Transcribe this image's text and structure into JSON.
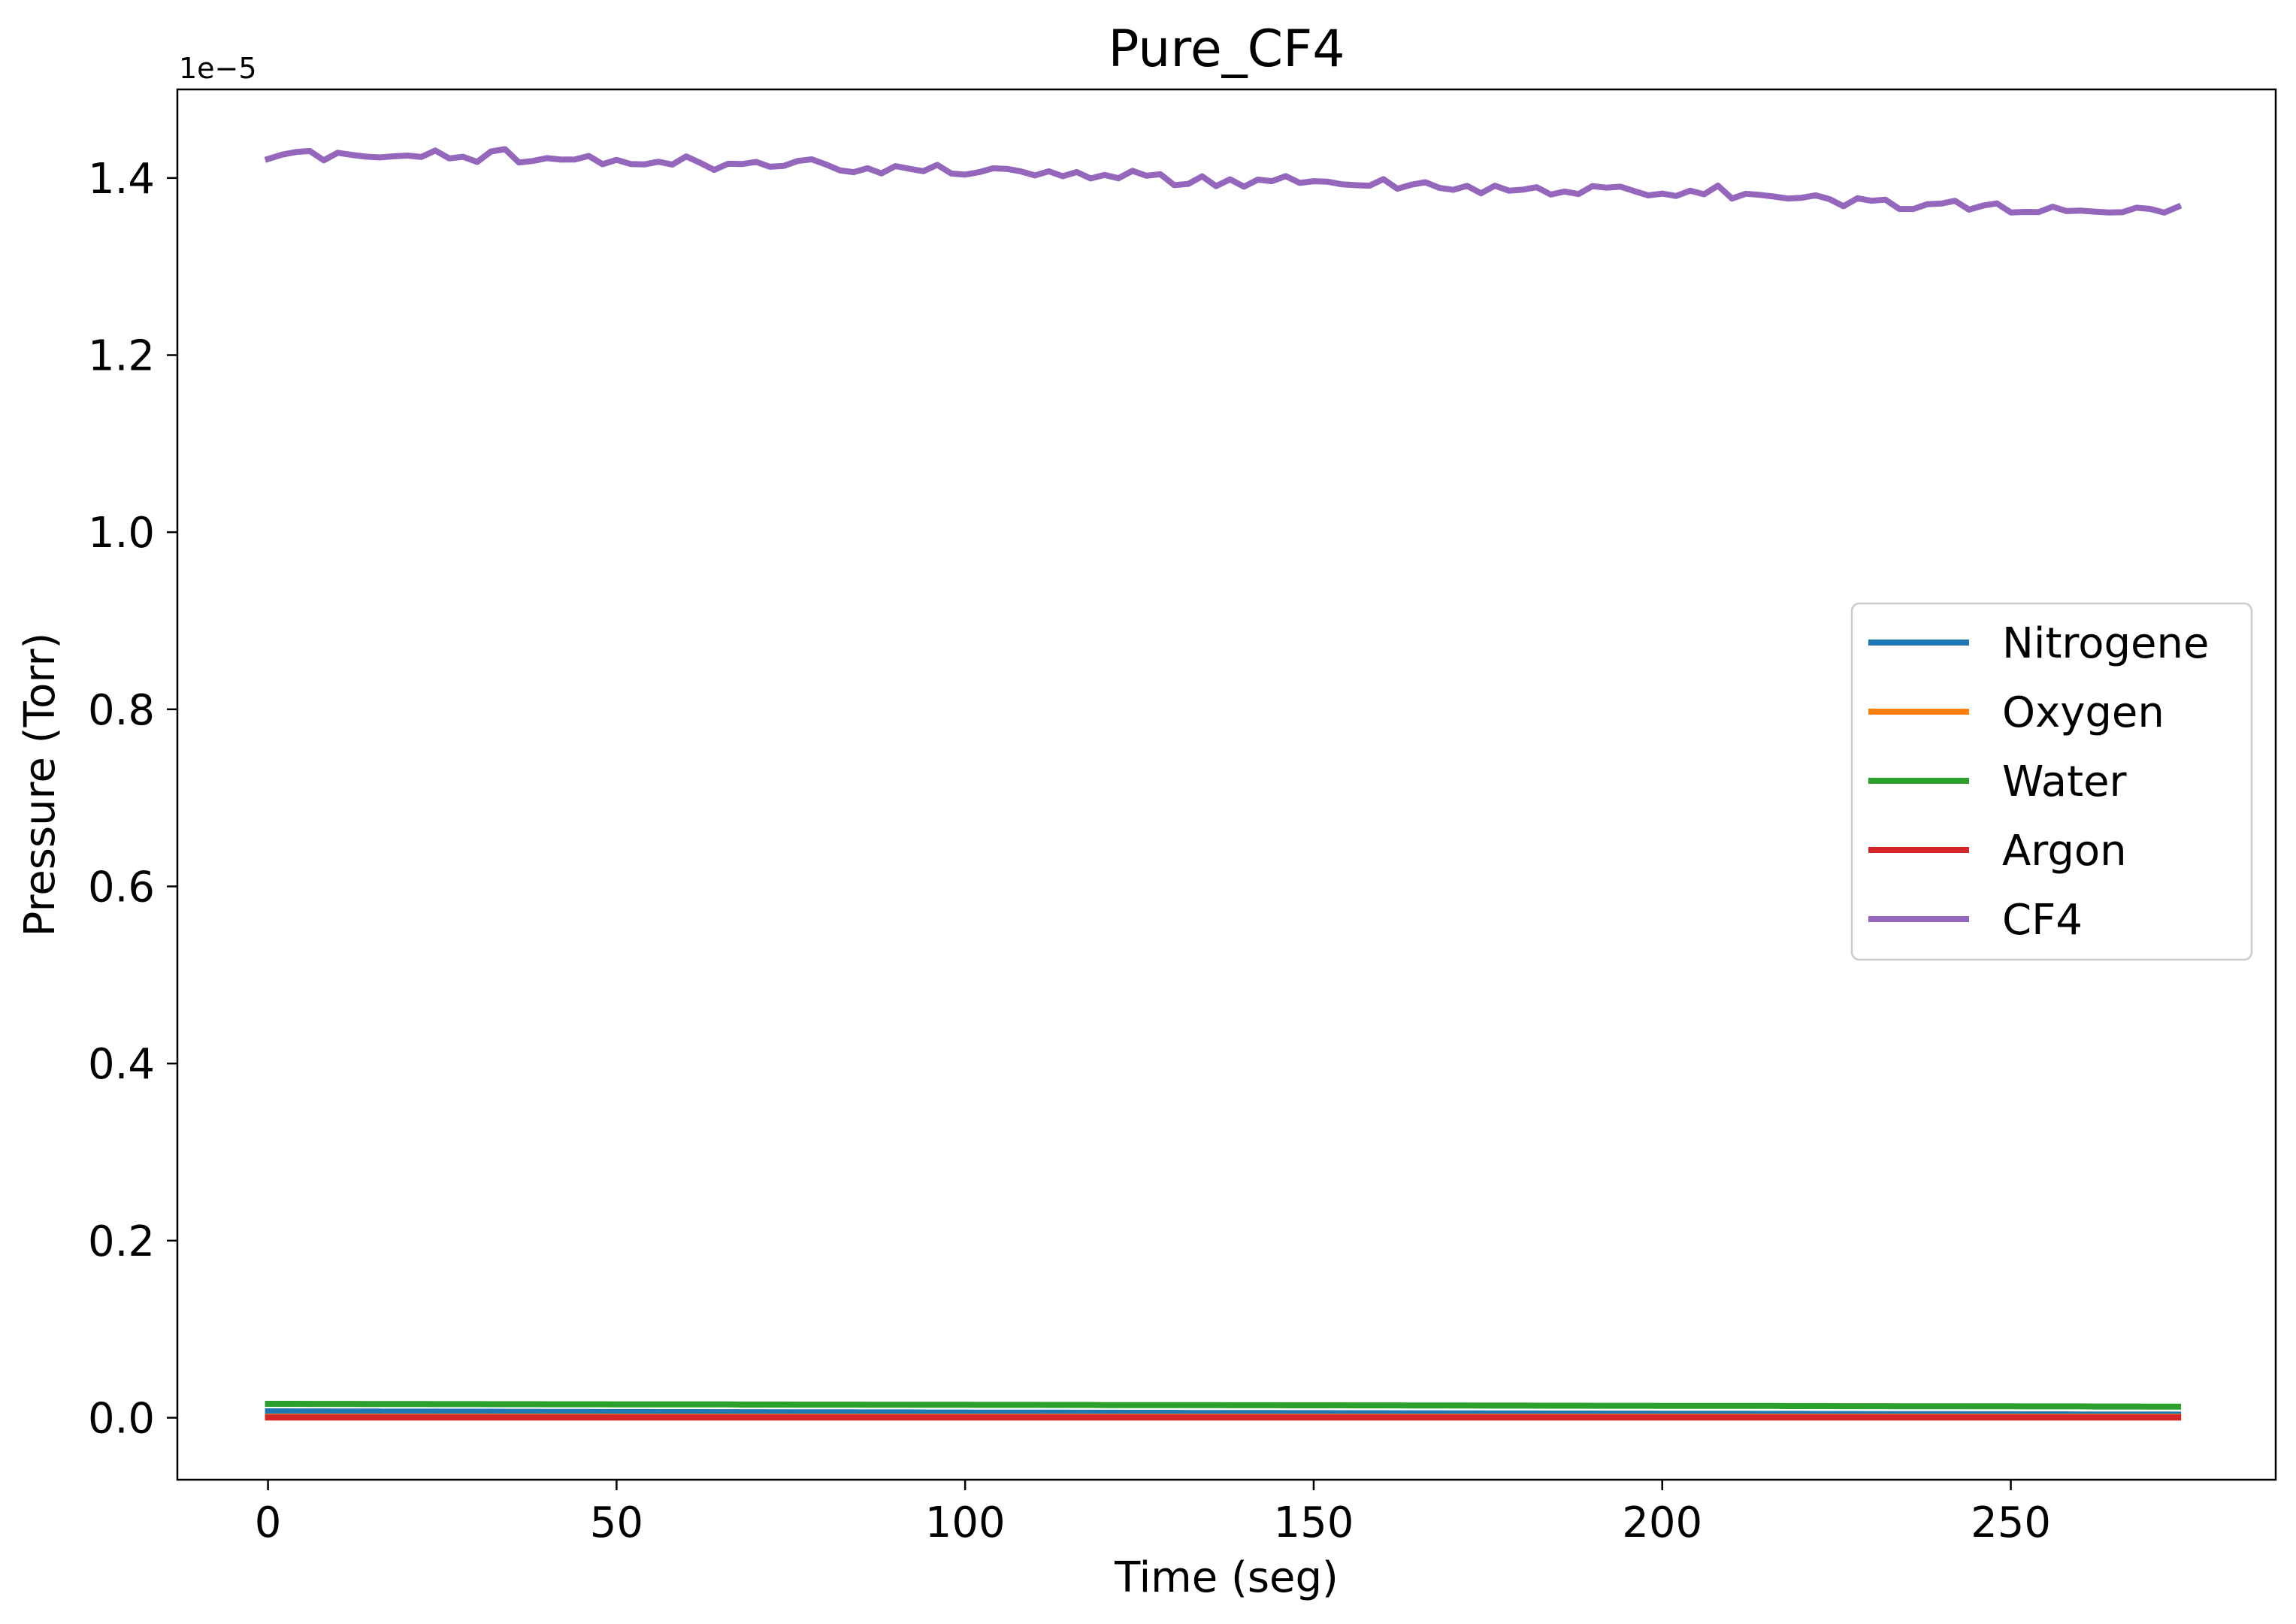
{
  "chart_data": {
    "type": "line",
    "title": "Pure_CF4",
    "xlabel": "Time (seg)",
    "ylabel": "Pressure (Torr)",
    "y_offset_label": "1e−5",
    "y_scale_factor": 1e-05,
    "xlim": [
      -13,
      288
    ],
    "ylim": [
      -0.07,
      1.5
    ],
    "x_ticks": [
      0,
      50,
      100,
      150,
      200,
      250
    ],
    "y_ticks": [
      0.0,
      0.2,
      0.4,
      0.6,
      0.8,
      1.0,
      1.2,
      1.4
    ],
    "x_tick_labels": [
      "0",
      "50",
      "100",
      "150",
      "200",
      "250"
    ],
    "y_tick_labels": [
      "0.0",
      "0.2",
      "0.4",
      "0.6",
      "0.8",
      "1.0",
      "1.2",
      "1.4"
    ],
    "grid": false,
    "legend_position": "center-right",
    "x": [
      0,
      2,
      4,
      6,
      8,
      10,
      12,
      14,
      16,
      18,
      20,
      22,
      24,
      26,
      28,
      30,
      32,
      34,
      36,
      38,
      40,
      42,
      44,
      46,
      48,
      50,
      52,
      54,
      56,
      58,
      60,
      62,
      64,
      66,
      68,
      70,
      72,
      74,
      76,
      78,
      80,
      82,
      84,
      86,
      88,
      90,
      92,
      94,
      96,
      98,
      100,
      102,
      104,
      106,
      108,
      110,
      112,
      114,
      116,
      118,
      120,
      122,
      124,
      126,
      128,
      130,
      132,
      134,
      136,
      138,
      140,
      142,
      144,
      146,
      148,
      150,
      152,
      154,
      156,
      158,
      160,
      162,
      164,
      166,
      168,
      170,
      172,
      174,
      176,
      178,
      180,
      182,
      184,
      186,
      188,
      190,
      192,
      194,
      196,
      198,
      200,
      202,
      204,
      206,
      208,
      210,
      212,
      214,
      216,
      218,
      220,
      222,
      224,
      226,
      228,
      230,
      232,
      234,
      236,
      238,
      240,
      242,
      244,
      246,
      248,
      250,
      252,
      254,
      256,
      258,
      260,
      262,
      264,
      266,
      268,
      270,
      272,
      274
    ],
    "series": [
      {
        "name": "Nitrogene",
        "color": "#1f77b4",
        "values": [
          0.0072,
          0.0072,
          0.0071,
          0.0071,
          0.0071,
          0.007,
          0.007,
          0.007,
          0.007,
          0.0069,
          0.0069,
          0.0069,
          0.0069,
          0.0068,
          0.0068,
          0.0068,
          0.0068,
          0.0067,
          0.0067,
          0.0067,
          0.0066,
          0.0066,
          0.0066,
          0.0066,
          0.0065,
          0.0065,
          0.0065,
          0.0065,
          0.0064,
          0.0064,
          0.0064,
          0.0064,
          0.0063,
          0.0063,
          0.0063,
          0.0063,
          0.0062,
          0.0062,
          0.0062,
          0.0061,
          0.0061,
          0.0061,
          0.0061,
          0.006,
          0.006,
          0.006,
          0.006,
          0.0059,
          0.0059,
          0.0059,
          0.0059,
          0.0058,
          0.0058,
          0.0058,
          0.0058,
          0.0057,
          0.0057,
          0.0057,
          0.0056,
          0.0056,
          0.0056,
          0.0056,
          0.0055,
          0.0055,
          0.0055,
          0.0055,
          0.0054,
          0.0054,
          0.0054,
          0.0054,
          0.0053,
          0.0053,
          0.0053,
          0.0052,
          0.0052,
          0.0052,
          0.0052,
          0.0051,
          0.0051,
          0.0051,
          0.0051,
          0.005,
          0.005,
          0.005,
          0.005,
          0.0049,
          0.0049,
          0.0049,
          0.0048,
          0.0048,
          0.0048,
          0.0048,
          0.0047,
          0.0047,
          0.0047,
          0.0047,
          0.0046,
          0.0046,
          0.0046,
          0.0046,
          0.0045,
          0.0045,
          0.0045,
          0.0044,
          0.0044,
          0.0044,
          0.0044,
          0.0043,
          0.0043,
          0.0043,
          0.0043,
          0.0042,
          0.0042,
          0.0042,
          0.0042,
          0.0041,
          0.0041,
          0.0041,
          0.0041,
          0.004,
          0.004,
          0.004,
          0.0039,
          0.0039,
          0.0039,
          0.0039,
          0.0038,
          0.0038,
          0.0038,
          0.0038,
          0.0037,
          0.0037,
          0.0037,
          0.0037,
          0.0036,
          0.0036,
          0.0036,
          0.0035
        ]
      },
      {
        "name": "Oxygen",
        "color": "#ff7f0e",
        "values": [
          0.0012,
          0.0012,
          0.0012,
          0.0012,
          0.0012,
          0.0012,
          0.0012,
          0.0012,
          0.0012,
          0.0012,
          0.0012,
          0.0012,
          0.0012,
          0.0012,
          0.0012,
          0.0012,
          0.0012,
          0.0012,
          0.0012,
          0.0012,
          0.0012,
          0.0012,
          0.0012,
          0.0012,
          0.0012,
          0.0011,
          0.0011,
          0.0011,
          0.0011,
          0.0011,
          0.0011,
          0.0011,
          0.0011,
          0.0011,
          0.0011,
          0.0011,
          0.0011,
          0.0011,
          0.0011,
          0.0011,
          0.0011,
          0.0011,
          0.0011,
          0.0011,
          0.0011,
          0.0011,
          0.0011,
          0.0011,
          0.0011,
          0.0011,
          0.0011,
          0.0011,
          0.0011,
          0.0011,
          0.0011,
          0.0011,
          0.0011,
          0.0011,
          0.0011,
          0.0011,
          0.0011,
          0.0011,
          0.0011,
          0.0011,
          0.0011,
          0.0011,
          0.0011,
          0.0011,
          0.0011,
          0.0011,
          0.0011,
          0.0011,
          0.0011,
          0.0011,
          0.0011,
          0.0011,
          0.0011,
          0.0011,
          0.0011,
          0.0011,
          0.0011,
          0.0011,
          0.0011,
          0.0011,
          0.0011,
          0.0011,
          0.0011,
          0.0011,
          0.0011,
          0.0011,
          0.0011,
          0.0011,
          0.0011,
          0.0011,
          0.0011,
          0.0011,
          0.001,
          0.001,
          0.001,
          0.001,
          0.001,
          0.001,
          0.001,
          0.001,
          0.001,
          0.001,
          0.001,
          0.001,
          0.001,
          0.001,
          0.001,
          0.001,
          0.001,
          0.001,
          0.001,
          0.001,
          0.001,
          0.001,
          0.001,
          0.001,
          0.001,
          0.001,
          0.001,
          0.001,
          0.001,
          0.001,
          0.001,
          0.001,
          0.001,
          0.001,
          0.001,
          0.001,
          0.001,
          0.001,
          0.001,
          0.001,
          0.001,
          0.001
        ]
      },
      {
        "name": "Water",
        "color": "#2ca02c",
        "values": [
          0.0157,
          0.0157,
          0.0157,
          0.0156,
          0.0156,
          0.0156,
          0.0156,
          0.0155,
          0.0155,
          0.0155,
          0.0155,
          0.0155,
          0.0154,
          0.0154,
          0.0154,
          0.0154,
          0.0153,
          0.0153,
          0.0153,
          0.0153,
          0.0152,
          0.0152,
          0.0152,
          0.0152,
          0.0152,
          0.0151,
          0.0151,
          0.0151,
          0.0151,
          0.015,
          0.015,
          0.015,
          0.015,
          0.015,
          0.0149,
          0.0149,
          0.0149,
          0.0149,
          0.0148,
          0.0148,
          0.0148,
          0.0148,
          0.0148,
          0.0147,
          0.0147,
          0.0147,
          0.0147,
          0.0146,
          0.0146,
          0.0146,
          0.0146,
          0.0145,
          0.0145,
          0.0145,
          0.0145,
          0.0145,
          0.0144,
          0.0144,
          0.0144,
          0.0144,
          0.0143,
          0.0143,
          0.0143,
          0.0143,
          0.0143,
          0.0142,
          0.0142,
          0.0142,
          0.0142,
          0.0141,
          0.0141,
          0.0141,
          0.0141,
          0.014,
          0.014,
          0.014,
          0.014,
          0.014,
          0.0139,
          0.0139,
          0.0139,
          0.0139,
          0.0138,
          0.0138,
          0.0138,
          0.0138,
          0.0138,
          0.0137,
          0.0137,
          0.0137,
          0.0137,
          0.0136,
          0.0136,
          0.0136,
          0.0136,
          0.0135,
          0.0135,
          0.0135,
          0.0135,
          0.0135,
          0.0134,
          0.0134,
          0.0134,
          0.0134,
          0.0133,
          0.0133,
          0.0133,
          0.0133,
          0.0133,
          0.0132,
          0.0132,
          0.0132,
          0.0132,
          0.0131,
          0.0131,
          0.0131,
          0.0131,
          0.013,
          0.013,
          0.013,
          0.013,
          0.013,
          0.0129,
          0.0129,
          0.0129,
          0.0129,
          0.0128,
          0.0128,
          0.0128,
          0.0128,
          0.0128,
          0.0127,
          0.0127,
          0.0127,
          0.0127,
          0.0126,
          0.0126,
          0.0126
        ]
      },
      {
        "name": "Argon",
        "color": "#d62728",
        "values": [
          0.0002,
          0.0002,
          0.0002,
          0.0002,
          0.0002,
          0.0002,
          0.0002,
          0.0002,
          0.0002,
          0.0002,
          0.0002,
          0.0002,
          0.0002,
          0.0002,
          0.0002,
          0.0002,
          0.0002,
          0.0002,
          0.0002,
          0.0002,
          0.0002,
          0.0002,
          0.0002,
          0.0002,
          0.0002,
          0.0002,
          0.0002,
          0.0002,
          0.0002,
          0.0002,
          0.0002,
          0.0002,
          0.0002,
          0.0002,
          0.0002,
          0.0002,
          0.0002,
          0.0002,
          0.0002,
          0.0002,
          0.0002,
          0.0002,
          0.0002,
          0.0002,
          0.0002,
          0.0002,
          0.0002,
          0.0002,
          0.0002,
          0.0002,
          0.0002,
          0.0002,
          0.0002,
          0.0002,
          0.0002,
          0.0002,
          0.0002,
          0.0002,
          0.0002,
          0.0002,
          0.0002,
          0.0002,
          0.0002,
          0.0002,
          0.0002,
          0.0002,
          0.0002,
          0.0002,
          0.0002,
          0.0002,
          0.0002,
          0.0002,
          0.0002,
          0.0002,
          0.0002,
          0.0002,
          0.0002,
          0.0002,
          0.0002,
          0.0002,
          0.0002,
          0.0002,
          0.0002,
          0.0002,
          0.0002,
          0.0002,
          0.0002,
          0.0002,
          0.0002,
          0.0002,
          0.0002,
          0.0002,
          0.0002,
          0.0002,
          0.0002,
          0.0002,
          0.0002,
          0.0002,
          0.0002,
          0.0002,
          0.0002,
          0.0002,
          0.0002,
          0.0002,
          0.0002,
          0.0002,
          0.0002,
          0.0002,
          0.0002,
          0.0002,
          0.0002,
          0.0002,
          0.0002,
          0.0002,
          0.0002,
          0.0002,
          0.0002,
          0.0002,
          0.0002,
          0.0002,
          0.0002,
          0.0002,
          0.0002,
          0.0002,
          0.0002,
          0.0002,
          0.0002,
          0.0002,
          0.0002,
          0.0002,
          0.0002,
          0.0002,
          0.0002,
          0.0002,
          0.0002,
          0.0002,
          0.0002,
          0.0002
        ]
      },
      {
        "name": "CF4",
        "color": "#9467bd",
        "values": [
          1.4214,
          1.4263,
          1.4293,
          1.4305,
          1.42,
          1.4285,
          1.4261,
          1.4241,
          1.4232,
          1.4245,
          1.4253,
          1.4237,
          1.431,
          1.4221,
          1.424,
          1.4181,
          1.43,
          1.4325,
          1.4175,
          1.4192,
          1.4224,
          1.4207,
          1.4208,
          1.4249,
          1.4156,
          1.4205,
          1.4158,
          1.4153,
          1.4184,
          1.4151,
          1.4244,
          1.4171,
          1.4091,
          1.4161,
          1.4157,
          1.4182,
          1.4127,
          1.4137,
          1.4192,
          1.4211,
          1.4154,
          1.4087,
          1.4066,
          1.411,
          1.4052,
          1.4134,
          1.4104,
          1.4077,
          1.4148,
          1.405,
          1.4038,
          1.4066,
          1.4109,
          1.4103,
          1.4074,
          1.4029,
          1.4076,
          1.402,
          1.4067,
          1.3994,
          1.4034,
          1.3997,
          1.4081,
          1.4025,
          1.4043,
          1.3919,
          1.3933,
          1.4019,
          1.3908,
          1.3985,
          1.3902,
          1.3982,
          1.3964,
          1.4021,
          1.3944,
          1.3964,
          1.3958,
          1.3929,
          1.3919,
          1.3913,
          1.3987,
          1.3878,
          1.3924,
          1.3952,
          1.3889,
          1.3866,
          1.3911,
          1.3827,
          1.3913,
          1.3857,
          1.3868,
          1.3896,
          1.3813,
          1.3847,
          1.3819,
          1.3909,
          1.389,
          1.3902,
          1.3852,
          1.3803,
          1.3824,
          1.3797,
          1.3856,
          1.3816,
          1.3914,
          1.3768,
          1.3822,
          1.3809,
          1.3791,
          1.3768,
          1.3776,
          1.3804,
          1.3761,
          1.3681,
          1.3771,
          1.3742,
          1.3755,
          1.3651,
          1.365,
          1.3703,
          1.3711,
          1.3742,
          1.3642,
          1.3688,
          1.3713,
          1.3611,
          1.3617,
          1.3615,
          1.3675,
          1.3626,
          1.3632,
          1.362,
          1.3611,
          1.3613,
          1.3664,
          1.3651,
          1.3609,
          1.3675
        ]
      }
    ]
  }
}
